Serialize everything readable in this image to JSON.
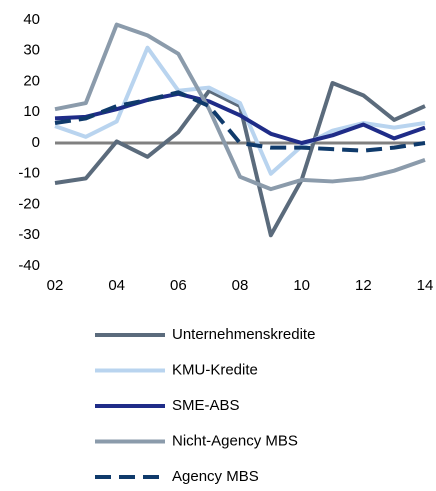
{
  "chart_data": {
    "type": "line",
    "x": [
      2,
      3,
      4,
      5,
      6,
      7,
      8,
      9,
      10,
      11,
      12,
      13,
      14
    ],
    "series": [
      {
        "name": "Unternehmenskredite",
        "color": "#5b6b7c",
        "values": [
          -13,
          -11.5,
          0.5,
          -4.5,
          3.5,
          17,
          12,
          -30,
          -12,
          19.5,
          15.5,
          7.5,
          12
        ]
      },
      {
        "name": "KMU-Kredite",
        "color": "#b9d4ef",
        "values": [
          5.5,
          2,
          7,
          31,
          17,
          18,
          13,
          -10,
          -1,
          4,
          6.5,
          5,
          6.5
        ]
      },
      {
        "name": "SME-ABS",
        "color": "#1f2c88",
        "values": [
          8,
          8.5,
          11,
          14,
          16,
          13.5,
          9,
          3,
          0,
          2.5,
          6,
          1.5,
          5
        ]
      },
      {
        "name": "Nicht-Agency MBS",
        "color": "#8b9bab",
        "values": [
          11,
          13,
          38.5,
          35,
          29,
          11,
          -11,
          -15,
          -12,
          -12.5,
          -11.5,
          -9,
          -5.5
        ]
      },
      {
        "name": "Agency MBS",
        "color": "#0f3a6b",
        "dashed": true,
        "values": [
          6.5,
          8,
          12,
          14,
          16.5,
          12,
          0,
          -1.5,
          -1.5,
          -2,
          -2.5,
          -1.5,
          0
        ]
      }
    ],
    "xlim": [
      2,
      14
    ],
    "xticks": [
      {
        "value": 2,
        "label": "02"
      },
      {
        "value": 4,
        "label": "04"
      },
      {
        "value": 6,
        "label": "06"
      },
      {
        "value": 8,
        "label": "08"
      },
      10,
      12,
      14
    ],
    "ylim": [
      -40,
      40
    ],
    "yticks": [
      -40,
      -30,
      -20,
      -10,
      0,
      10,
      20,
      30,
      40
    ]
  }
}
